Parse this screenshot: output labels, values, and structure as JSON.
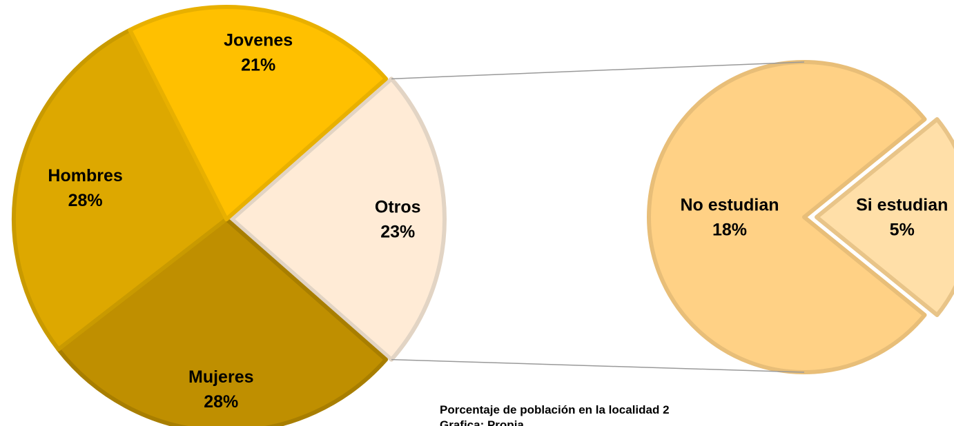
{
  "chart_data": [
    {
      "type": "pie",
      "categories": [
        "Otros",
        "Mujeres",
        "Hombres",
        "Jovenes"
      ],
      "values": [
        23,
        28,
        28,
        21
      ],
      "value_labels": [
        "23%",
        "28%",
        "28%",
        "21%"
      ],
      "colors": [
        "#FFEBD6",
        "#BF8F00",
        "#DDA800",
        "#FFC000"
      ]
    },
    {
      "type": "pie",
      "categories": [
        "No estudian",
        "Si estudian"
      ],
      "values": [
        18,
        5
      ],
      "value_labels": [
        "18%",
        "5%"
      ],
      "colors": [
        "#FFD185",
        "#FFDFA8"
      ]
    }
  ],
  "caption": [
    "Porcentaje de población en la localidad 2",
    "Grafica: Propia"
  ]
}
